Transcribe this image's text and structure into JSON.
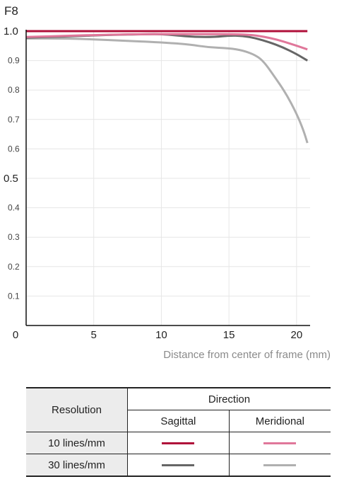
{
  "chart_data": {
    "type": "line",
    "title": "F8",
    "xlabel": "Distance from center of frame (mm)",
    "ylabel": "",
    "xlim": [
      0,
      21
    ],
    "ylim": [
      0,
      1.0
    ],
    "x_ticks": [
      {
        "value": 0,
        "label": "0"
      },
      {
        "value": 5,
        "label": "5"
      },
      {
        "value": 10,
        "label": "10"
      },
      {
        "value": 15,
        "label": "15"
      },
      {
        "value": 20,
        "label": "20"
      }
    ],
    "y_ticks": [
      {
        "value": 1.0,
        "label": "1.0",
        "big": true
      },
      {
        "value": 0.9,
        "label": "0.9"
      },
      {
        "value": 0.8,
        "label": "0.8"
      },
      {
        "value": 0.7,
        "label": "0.7"
      },
      {
        "value": 0.6,
        "label": "0.6"
      },
      {
        "value": 0.5,
        "label": "0.5",
        "big": true
      },
      {
        "value": 0.4,
        "label": "0.4"
      },
      {
        "value": 0.3,
        "label": "0.3"
      },
      {
        "value": 0.2,
        "label": "0.2"
      },
      {
        "value": 0.1,
        "label": "0.1"
      }
    ],
    "grid": true,
    "series": [
      {
        "key": "sag10",
        "color": "#b0103a",
        "points": [
          [
            0,
            1.0
          ],
          [
            5,
            1.0
          ],
          [
            10,
            1.0
          ],
          [
            15,
            1.0
          ],
          [
            17,
            1.0
          ],
          [
            19,
            1.0
          ],
          [
            20.8,
            1.0
          ]
        ]
      },
      {
        "key": "mer10",
        "color": "#e0779a",
        "points": [
          [
            0,
            0.98
          ],
          [
            3,
            0.984
          ],
          [
            6,
            0.988
          ],
          [
            9,
            0.99
          ],
          [
            11,
            0.99
          ],
          [
            13,
            0.99
          ],
          [
            15,
            0.99
          ],
          [
            16.5,
            0.988
          ],
          [
            17.5,
            0.982
          ],
          [
            18.5,
            0.972
          ],
          [
            19.5,
            0.958
          ],
          [
            20.8,
            0.938
          ]
        ]
      },
      {
        "key": "sag30",
        "color": "#666666",
        "points": [
          [
            0,
            0.978
          ],
          [
            3,
            0.982
          ],
          [
            6,
            0.987
          ],
          [
            9,
            0.99
          ],
          [
            10,
            0.99
          ],
          [
            11,
            0.986
          ],
          [
            12.5,
            0.98
          ],
          [
            14,
            0.98
          ],
          [
            15,
            0.985
          ],
          [
            16,
            0.984
          ],
          [
            17,
            0.976
          ],
          [
            18,
            0.962
          ],
          [
            19,
            0.945
          ],
          [
            20,
            0.922
          ],
          [
            20.8,
            0.9
          ]
        ]
      },
      {
        "key": "mer30",
        "color": "#b0b0b0",
        "points": [
          [
            0,
            0.975
          ],
          [
            3,
            0.975
          ],
          [
            5,
            0.972
          ],
          [
            7,
            0.968
          ],
          [
            10,
            0.962
          ],
          [
            12,
            0.955
          ],
          [
            13.5,
            0.945
          ],
          [
            15,
            0.942
          ],
          [
            16,
            0.935
          ],
          [
            17,
            0.918
          ],
          [
            17.6,
            0.895
          ],
          [
            18.3,
            0.85
          ],
          [
            19.2,
            0.79
          ],
          [
            20,
            0.72
          ],
          [
            20.5,
            0.665
          ],
          [
            20.8,
            0.62
          ]
        ]
      }
    ]
  },
  "legend": {
    "resolution_header": "Resolution",
    "direction_header": "Direction",
    "sagittal_header": "Sagittal",
    "meridional_header": "Meridional",
    "rows": [
      {
        "label": "10 lines/mm",
        "sagittal_color": "#b0103a",
        "meridional_color": "#e0779a"
      },
      {
        "label": "30 lines/mm",
        "sagittal_color": "#666666",
        "meridional_color": "#b0b0b0"
      }
    ]
  }
}
